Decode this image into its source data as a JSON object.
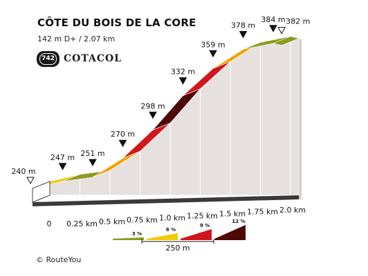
{
  "header": {
    "title": "CÔTE DU BOIS DE LA CORE",
    "subtitle": "142 m D+ / 2.07 km"
  },
  "brand": {
    "badge_number": "742",
    "name": "COTACOL"
  },
  "copyright": "©  RouteYou",
  "chart_data": {
    "type": "area",
    "title": "CÔTE DU BOIS DE LA CORE",
    "xlabel": "",
    "ylabel": "",
    "x_unit": "km",
    "points": [
      {
        "x": 0.0,
        "elevation": 240,
        "label": "240 m",
        "marker": "start"
      },
      {
        "x": 0.25,
        "elevation": 247,
        "label": "247 m",
        "marker": "filled"
      },
      {
        "x": 0.5,
        "elevation": 251,
        "label": "251 m",
        "marker": "filled"
      },
      {
        "x": 0.75,
        "elevation": 270,
        "label": "270 m",
        "marker": "filled"
      },
      {
        "x": 1.0,
        "elevation": 298,
        "label": "298 m",
        "marker": "filled"
      },
      {
        "x": 1.25,
        "elevation": 332,
        "label": "332 m",
        "marker": "filled"
      },
      {
        "x": 1.5,
        "elevation": 359,
        "label": "359 m",
        "marker": "filled"
      },
      {
        "x": 1.75,
        "elevation": 378,
        "label": "378 m",
        "marker": "filled"
      },
      {
        "x": 2.0,
        "elevation": 384,
        "label": "384 m",
        "marker": "filled"
      },
      {
        "x": 2.07,
        "elevation": 382,
        "label": "382 m",
        "marker": "end"
      }
    ],
    "segments": [
      {
        "from": 0.0,
        "to": 0.25,
        "color": "#f5c800"
      },
      {
        "from": 0.25,
        "to": 0.5,
        "color": "#8a9a1b"
      },
      {
        "from": 0.5,
        "to": 0.75,
        "color": "#f2a200"
      },
      {
        "from": 0.75,
        "to": 1.0,
        "color": "#d0161c"
      },
      {
        "from": 1.0,
        "to": 1.25,
        "color": "#4e0808"
      },
      {
        "from": 1.25,
        "to": 1.5,
        "color": "#d0161c"
      },
      {
        "from": 1.5,
        "to": 1.75,
        "color": "#f2a200"
      },
      {
        "from": 1.75,
        "to": 2.0,
        "color": "#8a9a1b"
      },
      {
        "from": 2.0,
        "to": 2.07,
        "color": "#8a9a1b"
      }
    ],
    "x_ticks": [
      {
        "value": 0.0,
        "label": "0"
      },
      {
        "value": 0.25,
        "label": "0.25 km"
      },
      {
        "value": 0.5,
        "label": "0.5 km"
      },
      {
        "value": 0.75,
        "label": "0.75 km"
      },
      {
        "value": 1.0,
        "label": "1.0 km"
      },
      {
        "value": 1.25,
        "label": "1.25 km"
      },
      {
        "value": 1.5,
        "label": "1.5 km"
      },
      {
        "value": 1.75,
        "label": "1.75 km"
      },
      {
        "value": 2.0,
        "label": "2.0 km"
      }
    ],
    "y_range": [
      240,
      384
    ],
    "legend": {
      "placement": "bottom-center",
      "items": [
        {
          "label": "3 %",
          "color": "#8a9a1b"
        },
        {
          "label": "6 %",
          "color": "#f5c800"
        },
        {
          "label": "9 %",
          "color": "#d0161c"
        },
        {
          "label": "12 %",
          "color": "#4e0808"
        }
      ],
      "scale_label": "250 m"
    },
    "colors": {
      "side_fill": "#e6e1de",
      "side_stroke": "#ffffff",
      "base": "#3a3a3a"
    }
  }
}
